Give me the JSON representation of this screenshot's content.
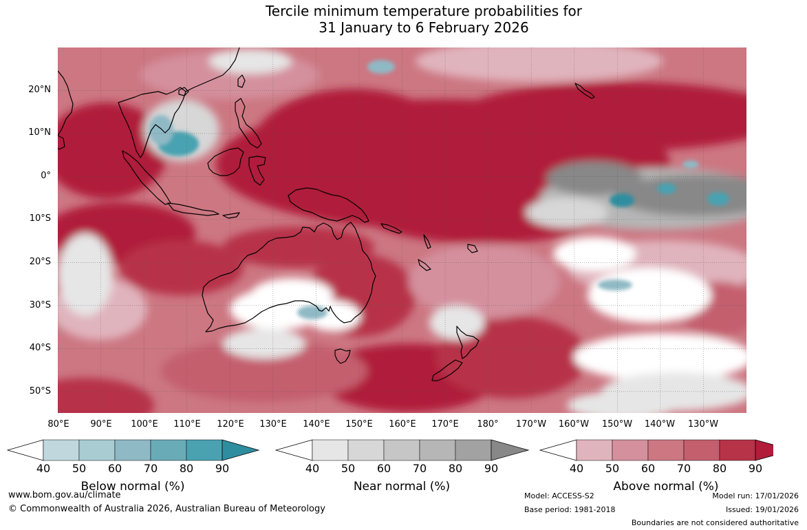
{
  "title": {
    "line1": "Tercile minimum temperature probabilities for",
    "line2": "31 January to 6 February 2026"
  },
  "map": {
    "lat_labels": [
      "20°N",
      "10°N",
      "0°",
      "10°S",
      "20°S",
      "30°S",
      "40°S",
      "50°S"
    ],
    "lon_labels": [
      "80°E",
      "90°E",
      "100°E",
      "110°E",
      "120°E",
      "130°E",
      "140°E",
      "150°E",
      "160°E",
      "170°E",
      "180°",
      "170°W",
      "160°W",
      "150°W",
      "140°W",
      "130°W"
    ],
    "extent": {
      "lon_min": 80,
      "lon_max": 240,
      "lat_min": -55,
      "lat_max": 30
    }
  },
  "colorbars": [
    {
      "title": "Below normal (%)",
      "ticks": [
        "40",
        "50",
        "60",
        "70",
        "80",
        "90"
      ],
      "colors": [
        "#c0d7de",
        "#a9ccd3",
        "#8fb9c5",
        "#6aabb8",
        "#4aa2b1",
        "#2e8ea0"
      ]
    },
    {
      "title": "Near normal (%)",
      "ticks": [
        "40",
        "50",
        "60",
        "70",
        "80",
        "90"
      ],
      "colors": [
        "#e6e6e6",
        "#d7d7d7",
        "#c6c6c6",
        "#b6b6b6",
        "#a2a2a2",
        "#888888"
      ]
    },
    {
      "title": "Above normal (%)",
      "ticks": [
        "40",
        "50",
        "60",
        "70",
        "80",
        "90"
      ],
      "colors": [
        "#e0b4bd",
        "#d4909d",
        "#cc7782",
        "#c45f6e",
        "#b73348",
        "#b01c3a"
      ]
    }
  ],
  "colors": {
    "above_90": "#b01c3a",
    "above_80": "#b73348",
    "above_70": "#c45f6e",
    "above_60": "#cc7782",
    "above_50": "#d4909d",
    "above_40": "#e0b4bd",
    "near_90": "#888888",
    "near_70": "#b6b6b6",
    "near_50": "#d7d7d7",
    "near_40": "#e6e6e6",
    "below_60": "#8fb9c5",
    "below_80": "#4aa2b1",
    "below_90": "#2e8ea0",
    "land_outline": "#000000",
    "gridline": "#555555"
  },
  "footer": {
    "website": "www.bom.gov.au/climate",
    "copyright": "© Commonwealth of Australia 2026, Australian Bureau of Meteorology",
    "model": "Model: ACCESS-S2",
    "base_period": "Base period: 1981-2018",
    "model_run": "Model run: 17/01/2026",
    "issued": "Issued: 19/01/2026",
    "disclaimer": "Boundaries are not considered authoritative"
  }
}
